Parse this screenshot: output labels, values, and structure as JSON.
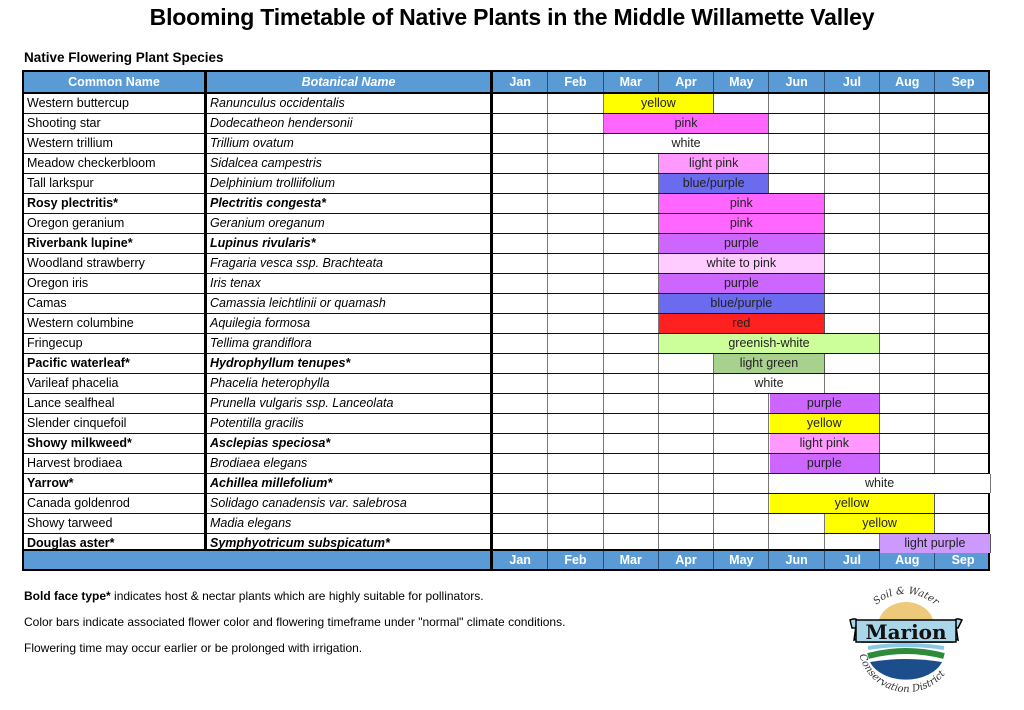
{
  "title": "Blooming Timetable of Native Plants in the Middle Willamette Valley",
  "subtitle": "Native Flowering Plant Species",
  "columns": {
    "common_name": "Common Name",
    "botanical_name": "Botanical Name",
    "months": [
      "Jan",
      "Feb",
      "Mar",
      "Apr",
      "May",
      "Jun",
      "Jul",
      "Aug",
      "Sep"
    ]
  },
  "colors": {
    "header_blue": "#5b9bd5",
    "yellow": "#ffff00",
    "pink": "#ff66ff",
    "light_pink": "#ff99ff",
    "blue_purple": "#6b6bef",
    "purple": "#cc66ff",
    "white_to_pink": "#ffccff",
    "red": "#ff2020",
    "greenish_white": "#ccff99",
    "light_green": "#a9d18e",
    "light_purple": "#cc99ff",
    "white": "#ffffff"
  },
  "plants": [
    {
      "common": "Western buttercup",
      "botanical": "Ranunculus occidentalis",
      "bold": false,
      "bloom": "yellow",
      "start": 2,
      "end": 3,
      "color": "#ffff00"
    },
    {
      "common": "Shooting star",
      "botanical": "Dodecatheon hendersonii",
      "bold": false,
      "bloom": "pink",
      "start": 2,
      "end": 4,
      "color": "#ff66ff"
    },
    {
      "common": "Western trillium",
      "botanical": "Trillium ovatum",
      "bold": false,
      "bloom": "white",
      "start": 2,
      "end": 4,
      "color": "#ffffff"
    },
    {
      "common": "Meadow checkerbloom",
      "botanical": "Sidalcea campestris",
      "bold": false,
      "bloom": "light pink",
      "start": 3,
      "end": 4,
      "color": "#ff99ff"
    },
    {
      "common": "Tall larkspur",
      "botanical": "Delphinium trolliifolium",
      "bold": false,
      "bloom": "blue/purple",
      "start": 3,
      "end": 4,
      "color": "#6b6bef"
    },
    {
      "common": "Rosy plectritis*",
      "botanical": "Plectritis congesta*",
      "bold": true,
      "bloom": "pink",
      "start": 3,
      "end": 5,
      "color": "#ff66ff"
    },
    {
      "common": "Oregon geranium",
      "botanical": "Geranium oreganum",
      "bold": false,
      "bloom": "pink",
      "start": 3,
      "end": 5,
      "color": "#ff66ff"
    },
    {
      "common": "Riverbank lupine*",
      "botanical": "Lupinus rivularis*",
      "bold": true,
      "bloom": "purple",
      "start": 3,
      "end": 5,
      "color": "#cc66ff"
    },
    {
      "common": "Woodland strawberry",
      "botanical": "Fragaria vesca ssp. Brachteata",
      "bold": false,
      "bloom": "white to pink",
      "start": 3,
      "end": 5,
      "color": "#ffccff"
    },
    {
      "common": "Oregon iris",
      "botanical": "Iris tenax",
      "bold": false,
      "bloom": "purple",
      "start": 3,
      "end": 5,
      "color": "#cc66ff"
    },
    {
      "common": "Camas",
      "botanical": "Camassia leichtlinii or quamash",
      "bold": false,
      "bloom": "blue/purple",
      "start": 3,
      "end": 5,
      "color": "#6b6bef"
    },
    {
      "common": "Western columbine",
      "botanical": "Aquilegia formosa",
      "bold": false,
      "bloom": "red",
      "start": 3,
      "end": 5,
      "color": "#ff2020"
    },
    {
      "common": "Fringecup",
      "botanical": "Tellima grandiflora",
      "bold": false,
      "bloom": "greenish-white",
      "start": 3,
      "end": 6,
      "color": "#ccff99"
    },
    {
      "common": "Pacific waterleaf*",
      "botanical": "Hydrophyllum tenupes*",
      "bold": true,
      "bloom": "light green",
      "start": 4,
      "end": 5,
      "color": "#a9d18e"
    },
    {
      "common": "Varileaf phacelia",
      "botanical": "Phacelia heterophylla",
      "bold": false,
      "bloom": "white",
      "start": 4,
      "end": 5,
      "color": "#ffffff"
    },
    {
      "common": "Lance sealfheal",
      "botanical": "Prunella vulgaris ssp. Lanceolata",
      "bold": false,
      "bloom": "purple",
      "start": 5,
      "end": 6,
      "color": "#cc66ff"
    },
    {
      "common": "Slender cinquefoil",
      "botanical": "Potentilla gracilis",
      "bold": false,
      "bloom": "yellow",
      "start": 5,
      "end": 6,
      "color": "#ffff00"
    },
    {
      "common": "Showy milkweed*",
      "botanical": "Asclepias speciosa*",
      "bold": true,
      "bloom": "light pink",
      "start": 5,
      "end": 6,
      "color": "#ff99ff"
    },
    {
      "common": "Harvest brodiaea",
      "botanical": "Brodiaea elegans",
      "bold": false,
      "bloom": "purple",
      "start": 5,
      "end": 6,
      "color": "#cc66ff"
    },
    {
      "common": "Yarrow*",
      "botanical": "Achillea millefolium*",
      "bold": true,
      "bloom": "white",
      "start": 5,
      "end": 8,
      "color": "#ffffff"
    },
    {
      "common": "Canada goldenrod",
      "botanical": "Solidago canadensis var. salebrosa",
      "bold": false,
      "bloom": "yellow",
      "start": 5,
      "end": 7,
      "color": "#ffff00"
    },
    {
      "common": "Showy tarweed",
      "botanical": "Madia elegans",
      "bold": false,
      "bloom": "yellow",
      "start": 6,
      "end": 7,
      "color": "#ffff00"
    },
    {
      "common": "Douglas aster*",
      "botanical": "Symphyotricum subspicatum*",
      "bold": true,
      "bloom": "light purple",
      "start": 7,
      "end": 8,
      "color": "#cc99ff"
    }
  ],
  "notes": {
    "bold_label": "Bold face type*",
    "bold_text": " indicates host & nectar plants which are highly suitable for pollinators.",
    "line2": "Color bars indicate associated flower color and flowering timeframe under \"normal\" climate conditions.",
    "line3": "Flowering time may occur earlier or be prolonged with irrigation."
  },
  "logo": {
    "top_arc": "Soil & Water",
    "name": "Marion",
    "bottom_arc": "Conservation District"
  }
}
